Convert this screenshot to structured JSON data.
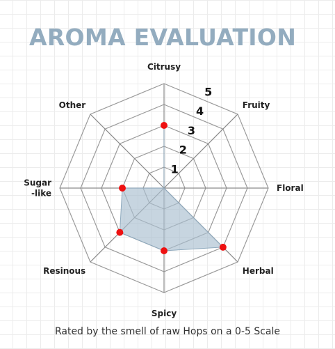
{
  "title": "AROMA EVALUATION",
  "caption": "Rated by the smell of raw Hops on a 0-5 Scale",
  "colors": {
    "title": "#93acbf",
    "area_fill": "#a9bfcf",
    "area_stroke": "#8ea9bd",
    "points": "#ee1111",
    "grid": "#9a9a9a",
    "axis": "#8a8a8a"
  },
  "chart_data": {
    "type": "radar",
    "title": "AROMA EVALUATION",
    "categories": [
      "Citrusy",
      "Fruity",
      "Floral",
      "Herbal",
      "Spicy",
      "Resinous",
      "Sugar -like",
      "Other"
    ],
    "category_lines": [
      [
        "Citrusy"
      ],
      [
        "Fruity"
      ],
      [
        "Floral"
      ],
      [
        "Herbal"
      ],
      [
        "Spicy"
      ],
      [
        "Resinous"
      ],
      [
        "Sugar",
        "-like"
      ],
      [
        "Other"
      ]
    ],
    "series": [
      {
        "values": [
          3,
          0,
          0,
          4,
          3,
          3,
          2,
          0
        ]
      }
    ],
    "range": [
      0,
      5
    ],
    "ticks": [
      1,
      2,
      3,
      4,
      5
    ],
    "grid_shape": "octagon",
    "grid": true,
    "legend": "none"
  }
}
